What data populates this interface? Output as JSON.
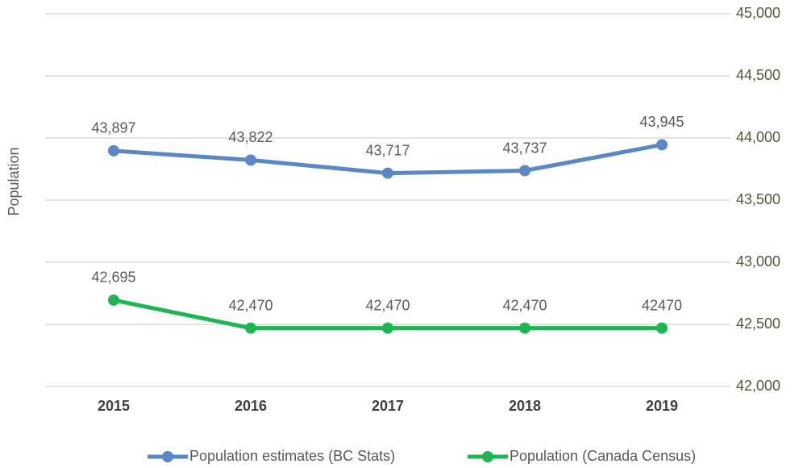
{
  "chart_data": {
    "type": "line",
    "y_label": "Population",
    "categories": [
      "2015",
      "2016",
      "2017",
      "2018",
      "2019"
    ],
    "series": [
      {
        "name": "Population estimates (BC Stats)",
        "color": "#5b87c5",
        "values": [
          43897,
          43822,
          43717,
          43737,
          43945
        ],
        "value_labels": [
          "43,897",
          "43,822",
          "43,717",
          "43,737",
          "43,945"
        ]
      },
      {
        "name": "Population (Canada Census)",
        "color": "#1fb552",
        "values": [
          42695,
          42470,
          42470,
          42470,
          42470
        ],
        "value_labels": [
          "42,695",
          "42,470",
          "42,470",
          "42,470",
          "42470"
        ]
      }
    ],
    "ylim": [
      42000,
      45000
    ],
    "yticks": [
      {
        "value": 42000,
        "label": "42,000"
      },
      {
        "value": 42500,
        "label": "42,500"
      },
      {
        "value": 43000,
        "label": "43,000"
      },
      {
        "value": 43500,
        "label": "43,500"
      },
      {
        "value": 44000,
        "label": "44,000"
      },
      {
        "value": 44500,
        "label": "44,500"
      },
      {
        "value": 45000,
        "label": "45,000"
      }
    ],
    "y_axis_side": "right",
    "grid": true,
    "legend": "bottom"
  }
}
